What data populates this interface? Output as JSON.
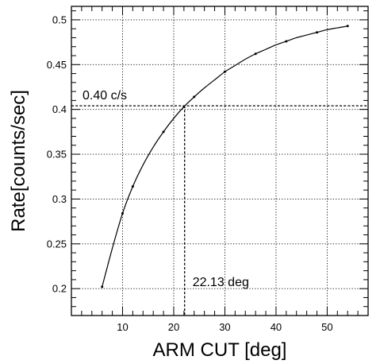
{
  "chart_data": {
    "type": "line",
    "title": "",
    "xlabel": "ARM CUT [deg]",
    "ylabel": "Rate[counts/sec]",
    "xlim": [
      0,
      58
    ],
    "ylim": [
      0.17,
      0.515
    ],
    "grid": true,
    "x_ticks": [
      10,
      20,
      30,
      40,
      50
    ],
    "y_ticks": [
      0.2,
      0.25,
      0.3,
      0.35,
      0.4,
      0.45,
      0.5
    ],
    "x_tick_labels": [
      "10",
      "20",
      "30",
      "40",
      "50"
    ],
    "y_tick_labels": [
      "0.2",
      "0.25",
      "0.3",
      "0.35",
      "0.4",
      "0.45",
      "0.5"
    ],
    "series": [
      {
        "x": [
          6,
          8,
          10,
          12,
          14,
          16,
          18,
          20,
          22,
          24,
          26,
          28,
          30,
          32,
          34,
          36,
          38,
          40,
          42,
          44,
          46,
          48,
          50,
          52,
          54
        ],
        "y": [
          0.202,
          0.245,
          0.284,
          0.314,
          0.338,
          0.358,
          0.375,
          0.39,
          0.403,
          0.414,
          0.424,
          0.433,
          0.442,
          0.449,
          0.456,
          0.462,
          0.467,
          0.472,
          0.476,
          0.48,
          0.483,
          0.486,
          0.489,
          0.491,
          0.493
        ]
      }
    ],
    "reference_lines": {
      "horizontal": {
        "y": 0.404,
        "label": "0.40 c/s"
      },
      "vertical": {
        "x": 22.13,
        "label": "22.13 deg"
      }
    }
  }
}
